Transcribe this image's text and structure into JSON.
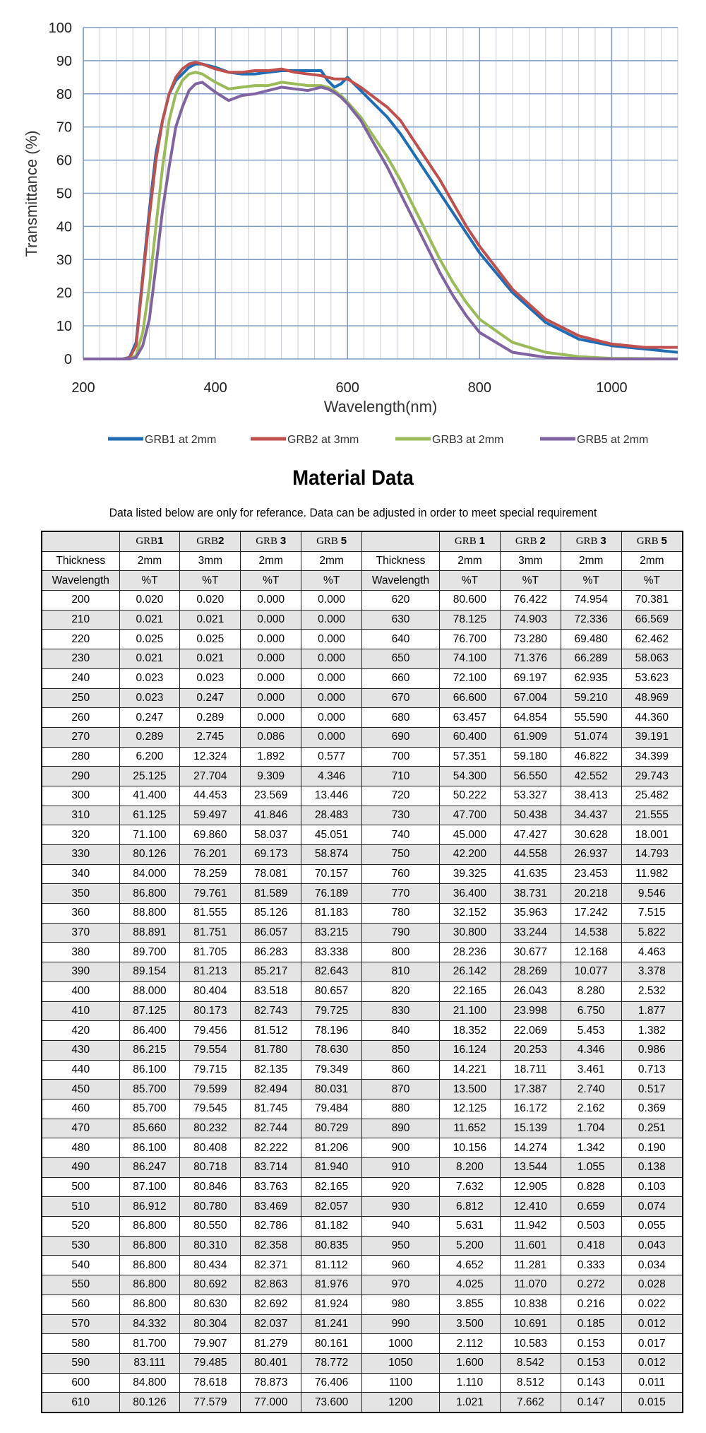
{
  "chart_data": {
    "type": "line",
    "xlabel": "Wavelength(nm)",
    "ylabel": "Transmittance (%)",
    "xlim": [
      200,
      1100
    ],
    "ylim": [
      0,
      100
    ],
    "xticks": [
      200,
      400,
      600,
      800,
      1000
    ],
    "yticks": [
      0,
      10,
      20,
      30,
      40,
      50,
      60,
      70,
      80,
      90,
      100
    ],
    "grid": true,
    "legend": "bottom",
    "x": [
      200,
      260,
      270,
      280,
      290,
      300,
      310,
      320,
      330,
      340,
      350,
      360,
      370,
      380,
      400,
      420,
      440,
      460,
      480,
      500,
      520,
      540,
      560,
      570,
      580,
      590,
      600,
      620,
      640,
      660,
      680,
      700,
      720,
      740,
      760,
      780,
      800,
      850,
      900,
      950,
      1000,
      1050,
      1100
    ],
    "series": [
      {
        "name": "GRB1 at 2mm",
        "color": "#1f6db5",
        "values": [
          0,
          0,
          0.5,
          5,
          25,
          45,
          62,
          72,
          80,
          84,
          86,
          88,
          89,
          89,
          88,
          86.5,
          86,
          86,
          86.5,
          87,
          87,
          87,
          87,
          84,
          82,
          83,
          85,
          81,
          77,
          73,
          68,
          62,
          56,
          50,
          44,
          38,
          32,
          20,
          11,
          6,
          4,
          3,
          2
        ]
      },
      {
        "name": "GRB2 at 3mm",
        "color": "#c0504d",
        "values": [
          0,
          0,
          0.3,
          4,
          24,
          43,
          60,
          72,
          80,
          85,
          87.5,
          89,
          89.5,
          89,
          87.5,
          86.5,
          86.5,
          87,
          87,
          87.5,
          86.5,
          86,
          85.5,
          85,
          84.5,
          84.5,
          84.5,
          82,
          79,
          76,
          72,
          66,
          60,
          54,
          47,
          40,
          34,
          21,
          12,
          7,
          4.5,
          3.5,
          3.5
        ]
      },
      {
        "name": "GRB3 at 2mm",
        "color": "#9bbb59",
        "values": [
          0,
          0,
          0,
          1,
          8,
          22,
          40,
          58,
          72,
          80,
          84,
          86,
          86.5,
          86,
          83.5,
          81.5,
          82,
          82.5,
          82.5,
          83.5,
          83,
          82.5,
          82.5,
          82,
          81,
          79.5,
          77.5,
          73,
          67,
          61,
          54,
          46,
          38,
          30,
          23,
          17,
          12,
          5,
          2,
          0.7,
          0.2,
          0.1,
          0
        ]
      },
      {
        "name": "GRB5 at 2mm",
        "color": "#8064a2",
        "values": [
          0,
          0,
          0,
          0.5,
          4,
          12,
          28,
          45,
          58,
          70,
          76,
          81,
          83,
          83.5,
          80.5,
          78,
          79.5,
          80,
          81,
          82,
          81.5,
          81,
          82,
          81.5,
          80.5,
          79,
          77,
          72,
          65,
          58,
          50,
          42,
          34,
          26,
          19,
          13,
          8,
          2,
          0.5,
          0.1,
          0,
          0,
          0
        ]
      }
    ]
  },
  "title": "Material Data",
  "subtitle": "Data listed below are only for referance.  Data can be adjusted in order to meet special requirement",
  "table": {
    "grades": [
      [
        "GRB",
        "1"
      ],
      [
        "GRB",
        "2"
      ],
      [
        "GRB ",
        "3"
      ],
      [
        "GRB ",
        "5"
      ],
      [
        "GRB ",
        "1"
      ],
      [
        "GRB ",
        "2"
      ],
      [
        "GRB ",
        "3"
      ],
      [
        "GRB ",
        "5"
      ]
    ],
    "thickness_row": [
      "Thickness",
      "2mm",
      "3mm",
      "2mm",
      "2mm",
      "Thickness",
      "2mm",
      "3mm",
      "2mm",
      "2mm"
    ],
    "unit_row": [
      "Wavelength",
      "%T",
      "%T",
      "%T",
      "%T",
      "Wavelength",
      "%T",
      "%T",
      "%T",
      "%T"
    ],
    "rows": [
      [
        "200",
        "0.020",
        "0.020",
        "0.000",
        "0.000",
        "620",
        "80.600",
        "76.422",
        "74.954",
        "70.381"
      ],
      [
        "210",
        "0.021",
        "0.021",
        "0.000",
        "0.000",
        "630",
        "78.125",
        "74.903",
        "72.336",
        "66.569"
      ],
      [
        "220",
        "0.025",
        "0.025",
        "0.000",
        "0.000",
        "640",
        "76.700",
        "73.280",
        "69.480",
        "62.462"
      ],
      [
        "230",
        "0.021",
        "0.021",
        "0.000",
        "0.000",
        "650",
        "74.100",
        "71.376",
        "66.289",
        "58.063"
      ],
      [
        "240",
        "0.023",
        "0.023",
        "0.000",
        "0.000",
        "660",
        "72.100",
        "69.197",
        "62.935",
        "53.623"
      ],
      [
        "250",
        "0.023",
        "0.247",
        "0.000",
        "0.000",
        "670",
        "66.600",
        "67.004",
        "59.210",
        "48.969"
      ],
      [
        "260",
        "0.247",
        "0.289",
        "0.000",
        "0.000",
        "680",
        "63.457",
        "64.854",
        "55.590",
        "44.360"
      ],
      [
        "270",
        "0.289",
        "2.745",
        "0.086",
        "0.000",
        "690",
        "60.400",
        "61.909",
        "51.074",
        "39.191"
      ],
      [
        "280",
        "6.200",
        "12.324",
        "1.892",
        "0.577",
        "700",
        "57.351",
        "59.180",
        "46.822",
        "34.399"
      ],
      [
        "290",
        "25.125",
        "27.704",
        "9.309",
        "4.346",
        "710",
        "54.300",
        "56.550",
        "42.552",
        "29.743"
      ],
      [
        "300",
        "41.400",
        "44.453",
        "23.569",
        "13.446",
        "720",
        "50.222",
        "53.327",
        "38.413",
        "25.482"
      ],
      [
        "310",
        "61.125",
        "59.497",
        "41.846",
        "28.483",
        "730",
        "47.700",
        "50.438",
        "34.437",
        "21.555"
      ],
      [
        "320",
        "71.100",
        "69.860",
        "58.037",
        "45.051",
        "740",
        "45.000",
        "47.427",
        "30.628",
        "18.001"
      ],
      [
        "330",
        "80.126",
        "76.201",
        "69.173",
        "58.874",
        "750",
        "42.200",
        "44.558",
        "26.937",
        "14.793"
      ],
      [
        "340",
        "84.000",
        "78.259",
        "78.081",
        "70.157",
        "760",
        "39.325",
        "41.635",
        "23.453",
        "11.982"
      ],
      [
        "350",
        "86.800",
        "79.761",
        "81.589",
        "76.189",
        "770",
        "36.400",
        "38.731",
        "20.218",
        "9.546"
      ],
      [
        "360",
        "88.800",
        "81.555",
        "85.126",
        "81.183",
        "780",
        "32.152",
        "35.963",
        "17.242",
        "7.515"
      ],
      [
        "370",
        "88.891",
        "81.751",
        "86.057",
        "83.215",
        "790",
        "30.800",
        "33.244",
        "14.538",
        "5.822"
      ],
      [
        "380",
        "89.700",
        "81.705",
        "86.283",
        "83.338",
        "800",
        "28.236",
        "30.677",
        "12.168",
        "4.463"
      ],
      [
        "390",
        "89.154",
        "81.213",
        "85.217",
        "82.643",
        "810",
        "26.142",
        "28.269",
        "10.077",
        "3.378"
      ],
      [
        "400",
        "88.000",
        "80.404",
        "83.518",
        "80.657",
        "820",
        "22.165",
        "26.043",
        "8.280",
        "2.532"
      ],
      [
        "410",
        "87.125",
        "80.173",
        "82.743",
        "79.725",
        "830",
        "21.100",
        "23.998",
        "6.750",
        "1.877"
      ],
      [
        "420",
        "86.400",
        "79.456",
        "81.512",
        "78.196",
        "840",
        "18.352",
        "22.069",
        "5.453",
        "1.382"
      ],
      [
        "430",
        "86.215",
        "79.554",
        "81.780",
        "78.630",
        "850",
        "16.124",
        "20.253",
        "4.346",
        "0.986"
      ],
      [
        "440",
        "86.100",
        "79.715",
        "82.135",
        "79.349",
        "860",
        "14.221",
        "18.711",
        "3.461",
        "0.713"
      ],
      [
        "450",
        "85.700",
        "79.599",
        "82.494",
        "80.031",
        "870",
        "13.500",
        "17.387",
        "2.740",
        "0.517"
      ],
      [
        "460",
        "85.700",
        "79.545",
        "81.745",
        "79.484",
        "880",
        "12.125",
        "16.172",
        "2.162",
        "0.369"
      ],
      [
        "470",
        "85.660",
        "80.232",
        "82.744",
        "80.729",
        "890",
        "11.652",
        "15.139",
        "1.704",
        "0.251"
      ],
      [
        "480",
        "86.100",
        "80.408",
        "82.222",
        "81.206",
        "900",
        "10.156",
        "14.274",
        "1.342",
        "0.190"
      ],
      [
        "490",
        "86.247",
        "80.718",
        "83.714",
        "81.940",
        "910",
        "8.200",
        "13.544",
        "1.055",
        "0.138"
      ],
      [
        "500",
        "87.100",
        "80.846",
        "83.763",
        "82.165",
        "920",
        "7.632",
        "12.905",
        "0.828",
        "0.103"
      ],
      [
        "510",
        "86.912",
        "80.780",
        "83.469",
        "82.057",
        "930",
        "6.812",
        "12.410",
        "0.659",
        "0.074"
      ],
      [
        "520",
        "86.800",
        "80.550",
        "82.786",
        "81.182",
        "940",
        "5.631",
        "11.942",
        "0.503",
        "0.055"
      ],
      [
        "530",
        "86.800",
        "80.310",
        "82.358",
        "80.835",
        "950",
        "5.200",
        "11.601",
        "0.418",
        "0.043"
      ],
      [
        "540",
        "86.800",
        "80.434",
        "82.371",
        "81.112",
        "960",
        "4.652",
        "11.281",
        "0.333",
        "0.034"
      ],
      [
        "550",
        "86.800",
        "80.692",
        "82.863",
        "81.976",
        "970",
        "4.025",
        "11.070",
        "0.272",
        "0.028"
      ],
      [
        "560",
        "86.800",
        "80.630",
        "82.692",
        "81.924",
        "980",
        "3.855",
        "10.838",
        "0.216",
        "0.022"
      ],
      [
        "570",
        "84.332",
        "80.304",
        "82.037",
        "81.241",
        "990",
        "3.500",
        "10.691",
        "0.185",
        "0.012"
      ],
      [
        "580",
        "81.700",
        "79.907",
        "81.279",
        "80.161",
        "1000",
        "2.112",
        "10.583",
        "0.153",
        "0.017"
      ],
      [
        "590",
        "83.111",
        "79.485",
        "80.401",
        "78.772",
        "1050",
        "1.600",
        "8.542",
        "0.153",
        "0.012"
      ],
      [
        "600",
        "84.800",
        "78.618",
        "78.873",
        "76.406",
        "1100",
        "1.110",
        "8.512",
        "0.143",
        "0.011"
      ],
      [
        "610",
        "80.126",
        "77.579",
        "77.000",
        "73.600",
        "1200",
        "1.021",
        "7.662",
        "0.147",
        "0.015"
      ]
    ]
  }
}
